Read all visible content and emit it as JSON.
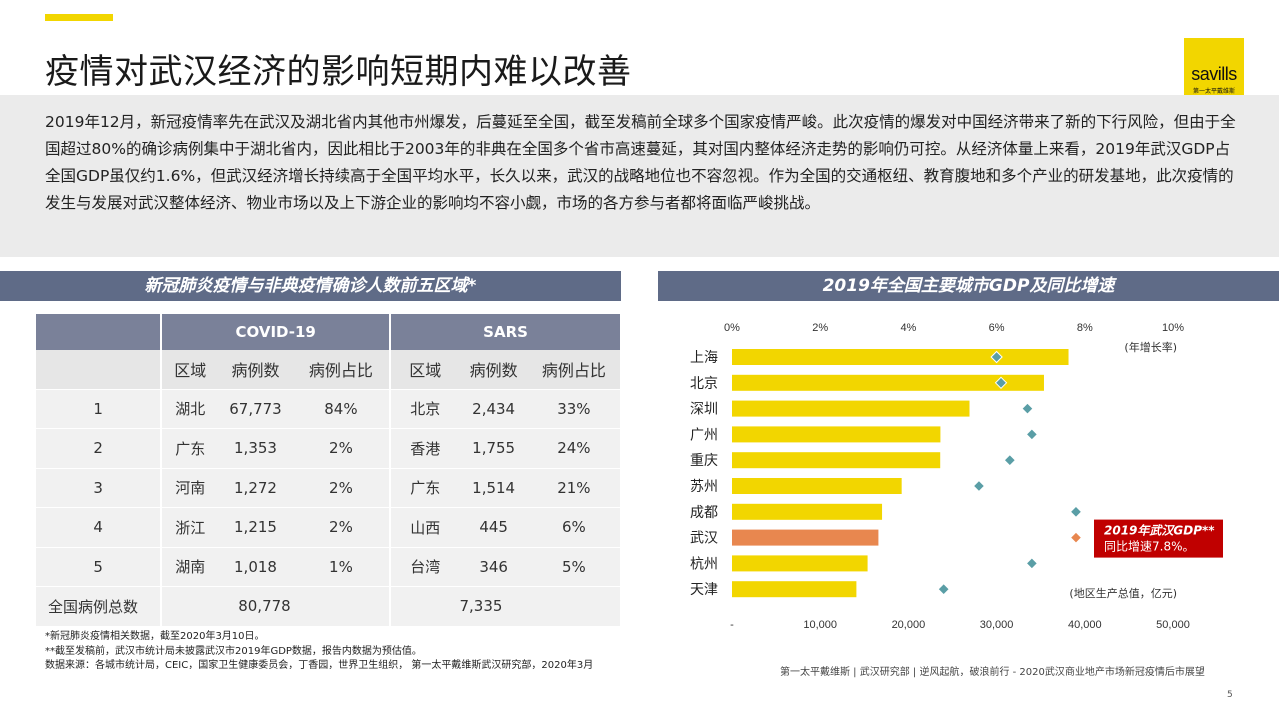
{
  "page": {
    "title": "疫情对武汉经济的影响短期内难以改善",
    "logo": "savills",
    "logo_sub": "第一太平戴维斯",
    "intro": "2019年12月，新冠疫情率先在武汉及湖北省内其他市州爆发，后蔓延至全国，截至发稿前全球多个国家疫情严峻。此次疫情的爆发对中国经济带来了新的下行风险，但由于全国超过80%的确诊病例集中于湖北省内，因此相比于2003年的非典在全国多个省市高速蔓延，其对国内整体经济走势的影响仍可控。从经济体量上来看，2019年武汉GDP占全国GDP虽仅约1.6%，但武汉经济增长持续高于全国平均水平，长久以来，武汉的战略地位也不容忽视。作为全国的交通枢纽、教育腹地和多个产业的研发基地，此次疫情的发生与发展对武汉整体经济、物业市场以及上下游企业的影响均不容小觑，市场的各方参与者都将面临严峻挑战。",
    "footer": "第一太平戴维斯 | 武汉研究部 | 逆风起航，破浪前行 - 2020武汉商业地产市场新冠疫情后市展望",
    "page_number": "5"
  },
  "table": {
    "title": "新冠肺炎疫情与非典疫情确诊人数前五区域*",
    "group_headers": [
      "COVID-19",
      "SARS"
    ],
    "sub_headers": [
      "区域",
      "病例数",
      "病例占比",
      "区域",
      "病例数",
      "病例占比"
    ],
    "rows": [
      {
        "rank": "1",
        "c_region": "湖北",
        "c_cases": "67,773",
        "c_share": "84%",
        "s_region": "北京",
        "s_cases": "2,434",
        "s_share": "33%"
      },
      {
        "rank": "2",
        "c_region": "广东",
        "c_cases": "1,353",
        "c_share": "2%",
        "s_region": "香港",
        "s_cases": "1,755",
        "s_share": "24%"
      },
      {
        "rank": "3",
        "c_region": "河南",
        "c_cases": "1,272",
        "c_share": "2%",
        "s_region": "广东",
        "s_cases": "1,514",
        "s_share": "21%"
      },
      {
        "rank": "4",
        "c_region": "浙江",
        "c_cases": "1,215",
        "c_share": "2%",
        "s_region": "山西",
        "s_cases": "445",
        "s_share": "6%"
      },
      {
        "rank": "5",
        "c_region": "湖南",
        "c_cases": "1,018",
        "c_share": "1%",
        "s_region": "台湾",
        "s_cases": "346",
        "s_share": "5%"
      }
    ],
    "total_label": "全国病例总数",
    "covid_total": "80,778",
    "sars_total": "7,335",
    "notes": [
      "*新冠肺炎疫情相关数据，截至2020年3月10日。",
      "**截至发稿前，武汉市统计局未披露武汉市2019年GDP数据，报告内数据为预估值。",
      "数据来源：各城市统计局，CEIC，国家卫生健康委员会，丁香园，世界卫生组织， 第一太平戴维斯武汉研究部，2020年3月"
    ]
  },
  "chart_data": {
    "type": "bar",
    "orientation": "horizontal",
    "title": "2019年全国主要城市GDP及同比增速",
    "categories": [
      "上海",
      "北京",
      "深圳",
      "广州",
      "重庆",
      "苏州",
      "成都",
      "武汉",
      "杭州",
      "天津"
    ],
    "series": [
      {
        "name": "(地区生产总值，亿元)",
        "type": "bar",
        "axis": "bottom",
        "values": [
          38155,
          35371,
          26927,
          23629,
          23606,
          19236,
          17013,
          16600,
          15373,
          14104
        ],
        "color": "#f2d600"
      },
      {
        "name": "(年增长率)",
        "type": "scatter",
        "axis": "top",
        "marker": "diamond",
        "values": [
          6.0,
          6.1,
          6.7,
          6.8,
          6.3,
          5.6,
          7.8,
          7.8,
          6.8,
          4.8
        ],
        "color": "#5a9ea6"
      }
    ],
    "highlight": {
      "category": "武汉",
      "color": "#e8874f"
    },
    "bottom_axis": {
      "range": [
        0,
        50000
      ],
      "ticks": [
        "-",
        "10,000",
        "20,000",
        "30,000",
        "40,000",
        "50,000"
      ],
      "label": "(地区生产总值，亿元)"
    },
    "top_axis": {
      "range": [
        0,
        10
      ],
      "ticks": [
        "0%",
        "2%",
        "4%",
        "6%",
        "8%",
        "10%"
      ],
      "label": "(年增长率)"
    },
    "annotation": {
      "line1": "2019年武汉GDP**",
      "line2": "同比增速7.8%。",
      "background": "#c00000"
    },
    "grid": false
  }
}
